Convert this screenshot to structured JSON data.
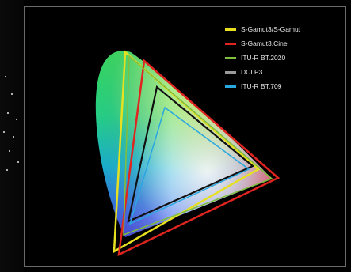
{
  "figure": {
    "background_color": "#000000",
    "frame_color": "#6a6a6a",
    "locus_fill": "spectral-gradient"
  },
  "legend": {
    "items": [
      {
        "label": "S-Gamut3/S-Gamut",
        "color": "#e6e021"
      },
      {
        "label": "S-Gamut3.Cine",
        "color": "#e0241f"
      },
      {
        "label": "ITU-R BT.2020",
        "color": "#7fbe3f"
      },
      {
        "label": "DCI P3",
        "color": "#9a9a9a"
      },
      {
        "label": "ITU-R BT.709",
        "color": "#2aa7e0"
      }
    ]
  }
}
